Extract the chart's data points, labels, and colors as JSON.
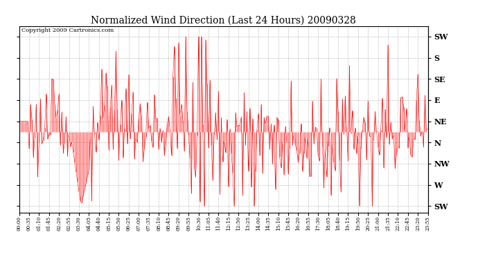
{
  "title": "Normalized Wind Direction (Last 24 Hours) 20090328",
  "copyright_text": "Copyright 2009 Cartronics.com",
  "line_color": "#ff0000",
  "bg_color": "#ffffff",
  "grid_color": "#999999",
  "ylabel_right": [
    "SW",
    "S",
    "SE",
    "E",
    "NE",
    "N",
    "NW",
    "W",
    "SW"
  ],
  "ytick_values": [
    8,
    7,
    6,
    5,
    4,
    3,
    2,
    1,
    0
  ],
  "ylim": [
    -0.3,
    8.5
  ],
  "xlim": [
    0,
    287
  ],
  "xtick_labels": [
    "00:00",
    "00:35",
    "01:10",
    "01:45",
    "02:20",
    "02:55",
    "03:30",
    "04:05",
    "04:40",
    "05:15",
    "05:50",
    "06:25",
    "07:00",
    "07:35",
    "08:10",
    "08:45",
    "09:20",
    "09:55",
    "10:30",
    "11:05",
    "11:40",
    "12:15",
    "12:50",
    "13:25",
    "14:00",
    "14:35",
    "15:10",
    "15:45",
    "16:20",
    "16:55",
    "17:30",
    "18:05",
    "18:40",
    "19:15",
    "19:50",
    "20:25",
    "21:00",
    "21:35",
    "22:10",
    "22:45",
    "23:20",
    "23:55"
  ],
  "figwidth": 6.9,
  "figheight": 3.75,
  "dpi": 100
}
